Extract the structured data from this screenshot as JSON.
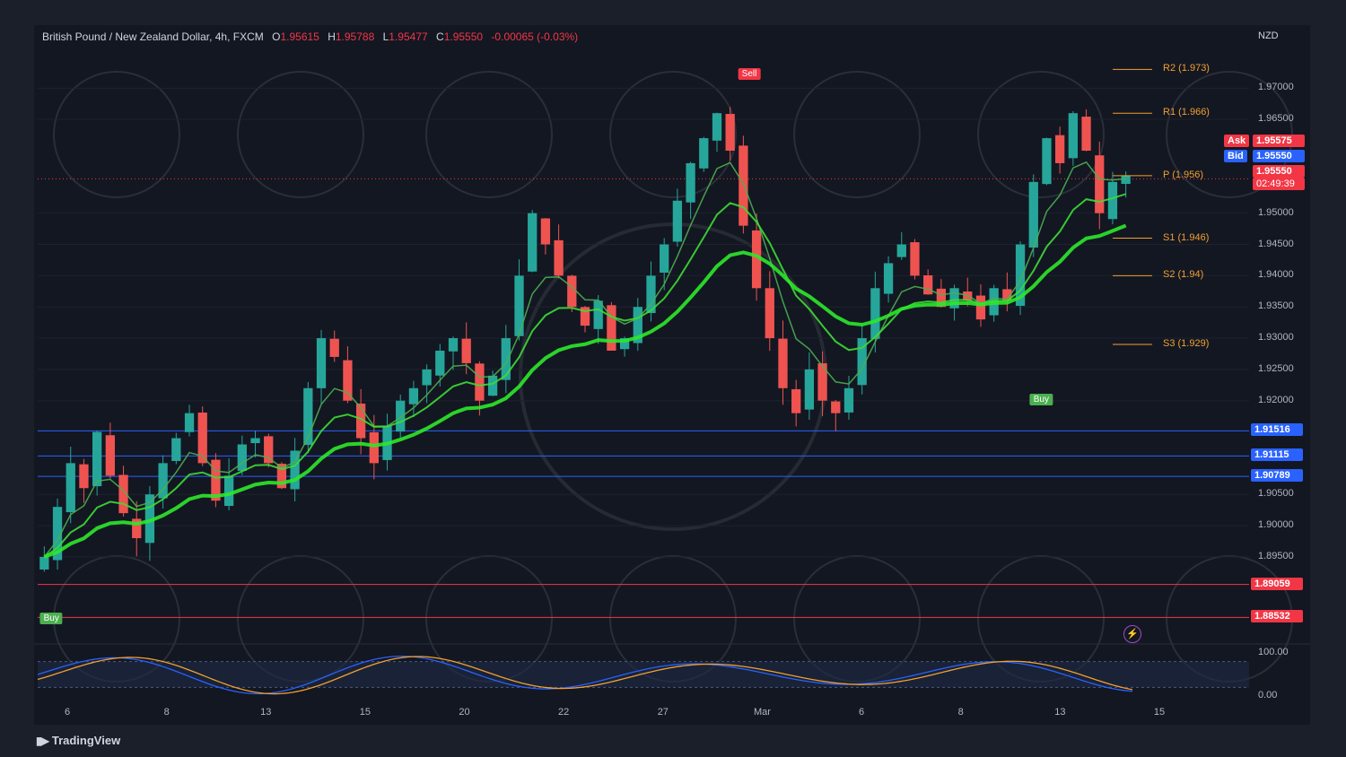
{
  "header": {
    "symbol": "British Pound / New Zealand Dollar, 4h, FXCM",
    "o_label": "O",
    "o": "1.95615",
    "h_label": "H",
    "h": "1.95788",
    "l_label": "L",
    "l": "1.95477",
    "c_label": "C",
    "c": "1.95550",
    "change": "-0.00065 (-0.03%)"
  },
  "currency": "NZD",
  "branding": "TradingView",
  "price_tags": {
    "ask_label": "Ask",
    "ask": "1.95575",
    "bid_label": "Bid",
    "bid": "1.95550",
    "last": "1.95550",
    "countdown": "02:49:39"
  },
  "colors": {
    "up": "#26a69a",
    "down": "#ef5350",
    "ma": "#3ddc35",
    "pivot": "#f0a030",
    "blue_level": "#2962ff",
    "red_level": "#f23645"
  },
  "chart_data": {
    "type": "candlestick",
    "timeframe": "4h",
    "x_ticks": [
      "6",
      "8",
      "13",
      "15",
      "20",
      "22",
      "27",
      "Mar",
      "6",
      "8",
      "13",
      "15"
    ],
    "y_ticks": [
      "1.97000",
      "1.96500",
      "1.95000",
      "1.94500",
      "1.94000",
      "1.93500",
      "1.93000",
      "1.92500",
      "1.92000",
      "1.90500",
      "1.90000",
      "1.89500"
    ],
    "ylim": [
      1.8825,
      1.9755
    ],
    "pivots": [
      {
        "label": "R2 (1.973)",
        "value": 1.973
      },
      {
        "label": "R1 (1.966)",
        "value": 1.966
      },
      {
        "label": "P (1.956)",
        "value": 1.956
      },
      {
        "label": "S1 (1.946)",
        "value": 1.946
      },
      {
        "label": "S2 (1.94)",
        "value": 1.94
      },
      {
        "label": "S3 (1.929)",
        "value": 1.929
      }
    ],
    "levels": [
      {
        "value": "1.91516",
        "color": "#2962ff"
      },
      {
        "value": "1.91115",
        "color": "#2962ff"
      },
      {
        "value": "1.90789",
        "color": "#2962ff"
      },
      {
        "value": "1.89059",
        "color": "#f23645"
      },
      {
        "value": "1.88532",
        "color": "#f23645"
      }
    ],
    "signals": [
      {
        "label": "Buy",
        "date_index": 3,
        "price": 1.885
      },
      {
        "label": "Sell",
        "date_index": 156,
        "price": 1.972
      },
      {
        "label": "Buy",
        "date_index": 220,
        "price": 1.92
      }
    ],
    "close_path": [
      1.895,
      1.903,
      1.91,
      1.906,
      1.915,
      1.908,
      1.902,
      1.898,
      1.905,
      1.91,
      1.914,
      1.918,
      1.91,
      1.904,
      1.908,
      1.913,
      1.914,
      1.91,
      1.906,
      1.912,
      1.922,
      1.93,
      1.927,
      1.92,
      1.914,
      1.91,
      1.916,
      1.92,
      1.922,
      1.925,
      1.928,
      1.93,
      1.926,
      1.92,
      1.924,
      1.93,
      1.94,
      1.95,
      1.945,
      1.94,
      1.935,
      1.932,
      1.936,
      1.928,
      1.93,
      1.935,
      1.94,
      1.945,
      1.952,
      1.958,
      1.962,
      1.966,
      1.96,
      1.948,
      1.938,
      1.93,
      1.922,
      1.918,
      1.925,
      1.92,
      1.918,
      1.922,
      1.93,
      1.938,
      1.942,
      1.945,
      1.94,
      1.937,
      1.935,
      1.938,
      1.936,
      1.933,
      1.938,
      1.936,
      1.945,
      1.955,
      1.962,
      1.958,
      1.966,
      1.96,
      1.95,
      1.955,
      1.956
    ],
    "oscillator": {
      "ylim": [
        0,
        100
      ],
      "ticks": [
        "100.00",
        "0.00"
      ],
      "band": [
        20,
        80
      ]
    }
  }
}
